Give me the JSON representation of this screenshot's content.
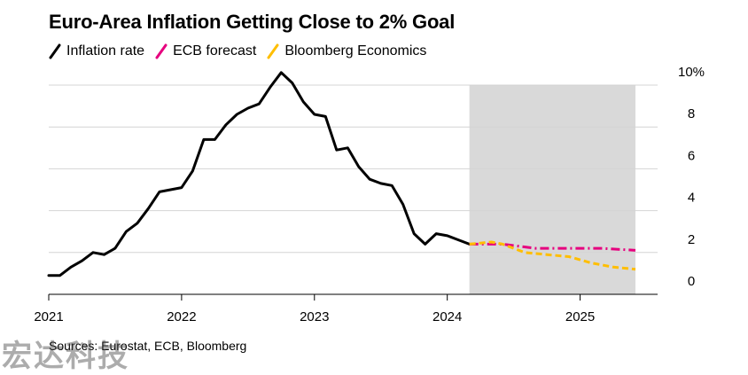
{
  "title": "Euro-Area Inflation Getting Close to 2% Goal",
  "source": "Sources: Eurostat, ECB, Bloomberg",
  "watermark": "宏达科技",
  "legend": [
    {
      "label": "Inflation rate",
      "color": "#000000"
    },
    {
      "label": "ECB forecast",
      "color": "#e6007e"
    },
    {
      "label": "Bloomberg Economics",
      "color": "#ffbe00"
    }
  ],
  "chart_data": {
    "type": "line",
    "yaxis": {
      "ylim": [
        0,
        10
      ],
      "ticks": [
        0,
        2,
        4,
        6,
        8,
        10
      ],
      "tick_labels": [
        "0",
        "2",
        "4",
        "6",
        "8",
        "10%"
      ]
    },
    "xaxis": {
      "xlim": [
        "2021-01",
        "2025-08"
      ],
      "ticks": [
        "2021-01",
        "2022-01",
        "2023-01",
        "2024-01",
        "2025-01"
      ],
      "tick_labels": [
        "2021",
        "2022",
        "2023",
        "2024",
        "2025"
      ]
    },
    "grid": true,
    "forecast_shade": {
      "from": "2024-03",
      "to": "2025-06",
      "color": "#d9d9d9"
    },
    "series": [
      {
        "name": "Inflation rate",
        "color": "#000000",
        "style": "solid",
        "x": [
          "2021-01",
          "2021-02",
          "2021-03",
          "2021-04",
          "2021-05",
          "2021-06",
          "2021-07",
          "2021-08",
          "2021-09",
          "2021-10",
          "2021-11",
          "2021-12",
          "2022-01",
          "2022-02",
          "2022-03",
          "2022-04",
          "2022-05",
          "2022-06",
          "2022-07",
          "2022-08",
          "2022-09",
          "2022-10",
          "2022-11",
          "2022-12",
          "2023-01",
          "2023-02",
          "2023-03",
          "2023-04",
          "2023-05",
          "2023-06",
          "2023-07",
          "2023-08",
          "2023-09",
          "2023-10",
          "2023-11",
          "2023-12",
          "2024-01",
          "2024-02",
          "2024-03"
        ],
        "y": [
          0.9,
          0.9,
          1.3,
          1.6,
          2.0,
          1.9,
          2.2,
          3.0,
          3.4,
          4.1,
          4.9,
          5.0,
          5.1,
          5.9,
          7.4,
          7.4,
          8.1,
          8.6,
          8.9,
          9.1,
          9.9,
          10.6,
          10.1,
          9.2,
          8.6,
          8.5,
          6.9,
          7.0,
          6.1,
          5.5,
          5.3,
          5.2,
          4.3,
          2.9,
          2.4,
          2.9,
          2.8,
          2.6,
          2.4
        ]
      },
      {
        "name": "ECB forecast",
        "color": "#e6007e",
        "style": "dashdot",
        "x": [
          "2024-03",
          "2024-06",
          "2024-09",
          "2024-12",
          "2025-03",
          "2025-06"
        ],
        "y": [
          2.4,
          2.4,
          2.2,
          2.2,
          2.2,
          2.1
        ]
      },
      {
        "name": "Bloomberg Economics",
        "color": "#ffbe00",
        "style": "dashed",
        "x": [
          "2024-03",
          "2024-05",
          "2024-06",
          "2024-08",
          "2024-10",
          "2024-12",
          "2025-02",
          "2025-04",
          "2025-06"
        ],
        "y": [
          2.4,
          2.5,
          2.4,
          2.0,
          1.9,
          1.8,
          1.5,
          1.3,
          1.2
        ]
      }
    ]
  }
}
